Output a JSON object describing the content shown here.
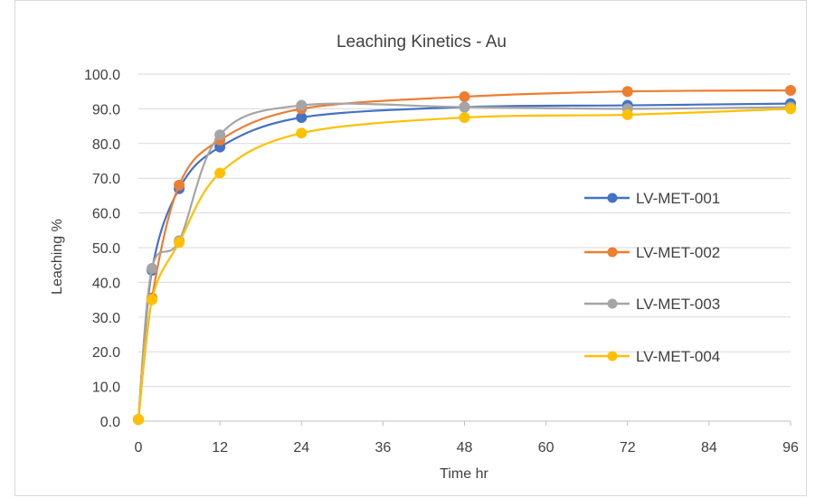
{
  "chart_data": {
    "type": "line",
    "title": "Leaching Kinetics - Au",
    "xlabel": "Time hr",
    "ylabel": "Leaching %",
    "xlim": [
      0,
      96
    ],
    "ylim": [
      0,
      100
    ],
    "x_ticks": [
      0,
      12,
      24,
      36,
      48,
      60,
      72,
      84,
      96
    ],
    "y_ticks": [
      0,
      10,
      20,
      30,
      40,
      50,
      60,
      70,
      80,
      90,
      100
    ],
    "x_tick_labels": [
      "0",
      "12",
      "24",
      "36",
      "48",
      "60",
      "72",
      "84",
      "96"
    ],
    "y_tick_labels": [
      "0.0",
      "10.0",
      "20.0",
      "30.0",
      "40.0",
      "50.0",
      "60.0",
      "70.0",
      "80.0",
      "90.0",
      "100.0"
    ],
    "grid": "horizontal",
    "legend_position": "right",
    "smooth": true,
    "series": [
      {
        "name": "LV-MET-001",
        "color": "#4472c4",
        "points": [
          [
            0,
            0.5
          ],
          [
            2,
            43.5
          ],
          [
            6,
            67.0
          ],
          [
            12,
            79.0
          ],
          [
            24,
            87.5
          ],
          [
            48,
            90.5
          ],
          [
            72,
            91.0
          ],
          [
            96,
            91.5
          ]
        ]
      },
      {
        "name": "LV-MET-002",
        "color": "#ed7d31",
        "points": [
          [
            0,
            0.5
          ],
          [
            2,
            35.5
          ],
          [
            6,
            68.0
          ],
          [
            12,
            81.0
          ],
          [
            24,
            90.0
          ],
          [
            48,
            93.5
          ],
          [
            72,
            95.0
          ],
          [
            96,
            95.3
          ]
        ]
      },
      {
        "name": "LV-MET-003",
        "color": "#a5a5a5",
        "points": [
          [
            0,
            0.5
          ],
          [
            2,
            44.0
          ],
          [
            6,
            52.0
          ],
          [
            12,
            82.5
          ],
          [
            24,
            91.0
          ],
          [
            48,
            90.5
          ],
          [
            72,
            90.0
          ],
          [
            96,
            90.5
          ]
        ]
      },
      {
        "name": "LV-MET-004",
        "color": "#ffc000",
        "points": [
          [
            0,
            0.5
          ],
          [
            2,
            35.0
          ],
          [
            6,
            51.5
          ],
          [
            12,
            71.5
          ],
          [
            24,
            83.0
          ],
          [
            48,
            87.5
          ],
          [
            72,
            88.3
          ],
          [
            96,
            90.0
          ]
        ]
      }
    ]
  }
}
